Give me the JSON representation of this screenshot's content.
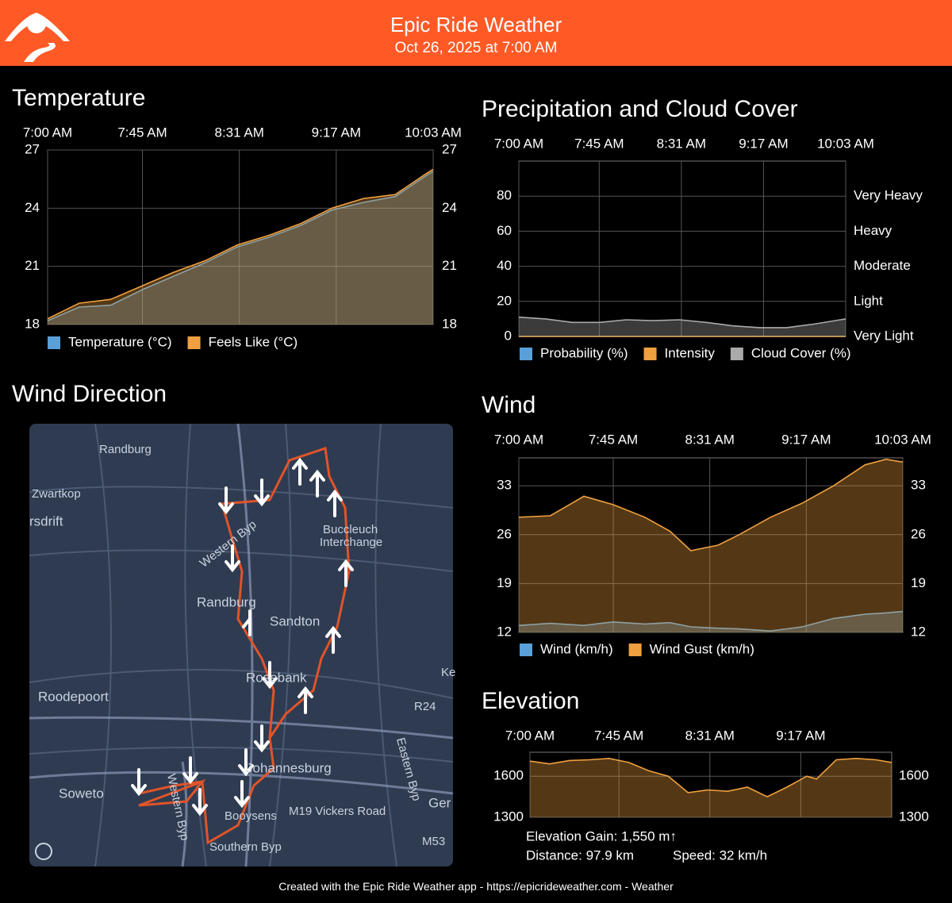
{
  "header": {
    "title": "Epic Ride Weather",
    "subtitle": "Oct 26, 2025 at 7:00 AM"
  },
  "chart_data": [
    {
      "type": "area",
      "title": "Temperature",
      "x": [
        0,
        15,
        30,
        45,
        60,
        75,
        90,
        105,
        120,
        135,
        150,
        165,
        180,
        183
      ],
      "xlim": [
        0,
        183
      ],
      "xticks": [
        {
          "value": 0,
          "label": "7:00 AM"
        },
        {
          "value": 45,
          "label": "7:45 AM"
        },
        {
          "value": 91,
          "label": "8:31 AM"
        },
        {
          "value": 137,
          "label": "9:17 AM"
        },
        {
          "value": 183,
          "label": "10:03 AM"
        }
      ],
      "ylim": [
        18,
        27
      ],
      "yticks": [
        18,
        21,
        24,
        27
      ],
      "grid": true,
      "series": [
        {
          "name": "Temperature (°C)",
          "color": "#5aa0d8",
          "values": [
            18.2,
            18.9,
            19.0,
            19.8,
            20.5,
            21.2,
            22.0,
            22.5,
            23.1,
            23.9,
            24.3,
            24.6,
            25.7,
            25.9
          ]
        },
        {
          "name": "Feels Like (°C)",
          "color": "#f0a040",
          "values": [
            18.3,
            19.1,
            19.3,
            20.0,
            20.7,
            21.3,
            22.1,
            22.6,
            23.2,
            24.0,
            24.5,
            24.7,
            25.8,
            26.0
          ]
        }
      ]
    },
    {
      "type": "area",
      "title": "Precipitation and Cloud Cover",
      "x": [
        0,
        15,
        30,
        45,
        60,
        75,
        90,
        105,
        120,
        135,
        150,
        165,
        180,
        183
      ],
      "xlim": [
        0,
        183
      ],
      "xticks": [
        {
          "value": 0,
          "label": "7:00 AM"
        },
        {
          "value": 45,
          "label": "7:45 AM"
        },
        {
          "value": 91,
          "label": "8:31 AM"
        },
        {
          "value": 137,
          "label": "9:17 AM"
        },
        {
          "value": 183,
          "label": "10:03 AM"
        }
      ],
      "ylim": [
        0,
        100
      ],
      "yticks": [
        0,
        20,
        40,
        60,
        80
      ],
      "y2lim": [
        0,
        100
      ],
      "y2ticks": [
        {
          "value": 0,
          "label": "Very Light"
        },
        {
          "value": 20,
          "label": "Light"
        },
        {
          "value": 40,
          "label": "Moderate"
        },
        {
          "value": 60,
          "label": "Heavy"
        },
        {
          "value": 80,
          "label": "Very Heavy"
        }
      ],
      "grid": true,
      "series": [
        {
          "name": "Probability (%)",
          "color": "#5aa0d8",
          "values": [
            0,
            0,
            0,
            0,
            0,
            0,
            0,
            0,
            0,
            0,
            0,
            0,
            0,
            0
          ]
        },
        {
          "name": "Intensity",
          "color": "#f0a040",
          "axis": "y2",
          "values": [
            0,
            0,
            0,
            0,
            0,
            0,
            0,
            0,
            0,
            0,
            0,
            0,
            0,
            0
          ]
        },
        {
          "name": "Cloud Cover (%)",
          "color": "#aaaaaa",
          "values": [
            11,
            10,
            8,
            8,
            9.5,
            9,
            9.5,
            8,
            6,
            5,
            5,
            7,
            9.5,
            10
          ]
        }
      ]
    },
    {
      "type": "area",
      "title": "Wind",
      "x": [
        0,
        15,
        31,
        45,
        60,
        72,
        82,
        95,
        105,
        120,
        135,
        150,
        165,
        175,
        183
      ],
      "xlim": [
        0,
        183
      ],
      "xticks": [
        {
          "value": 0,
          "label": "7:00 AM"
        },
        {
          "value": 45,
          "label": "7:45 AM"
        },
        {
          "value": 91,
          "label": "8:31 AM"
        },
        {
          "value": 137,
          "label": "9:17 AM"
        },
        {
          "value": 183,
          "label": "10:03 AM"
        }
      ],
      "ylim": [
        12,
        37
      ],
      "yticks": [
        12,
        19,
        26,
        33
      ],
      "grid": true,
      "series": [
        {
          "name": "Wind (km/h)",
          "color": "#5aa0d8",
          "values": [
            13,
            13.3,
            13,
            13.5,
            13.2,
            13.4,
            12.8,
            12.6,
            12.5,
            12.2,
            12.8,
            14,
            14.6,
            14.8,
            15
          ]
        },
        {
          "name": "Wind Gust (km/h)",
          "color": "#f0a040",
          "values": [
            28.5,
            28.7,
            31.5,
            30.3,
            28.5,
            26.5,
            23.7,
            24.5,
            26,
            28.5,
            30.5,
            33,
            36,
            36.8,
            36.4
          ]
        }
      ]
    },
    {
      "type": "area",
      "title": "Elevation",
      "x": [
        0,
        10,
        20,
        30,
        40,
        50,
        60,
        70,
        80,
        90,
        100,
        110,
        120,
        130,
        140,
        145,
        155,
        165,
        175,
        183
      ],
      "xlim": [
        0,
        183
      ],
      "xticks": [
        {
          "value": 0,
          "label": "7:00 AM"
        },
        {
          "value": 45,
          "label": "7:45 AM"
        },
        {
          "value": 91,
          "label": "8:31 AM"
        },
        {
          "value": 137,
          "label": "9:17 AM"
        }
      ],
      "ylim": [
        1300,
        1775
      ],
      "yticks": [
        1300,
        1600
      ],
      "grid": true,
      "series": [
        {
          "color": "#f0a040",
          "values": [
            1710,
            1690,
            1715,
            1720,
            1730,
            1700,
            1640,
            1600,
            1480,
            1500,
            1490,
            1520,
            1450,
            1520,
            1600,
            1580,
            1720,
            1730,
            1720,
            1700
          ]
        }
      ],
      "annotations": [
        "Elevation Gain: 1,550 m↑",
        "Distance: 97.9 km",
        "Speed: 32 km/h"
      ]
    }
  ],
  "map": {
    "title": "Wind Direction",
    "labels": [
      "Randburg",
      "Zwartkop",
      "rsdrift",
      "Buccleuch",
      "Interchange",
      "Western Byp",
      "Randburg",
      "Sandton",
      "Rosebank",
      "Roodepoort",
      "R24",
      "Eastern Byp",
      "Johannesburg",
      "Soweto",
      "Western Byp",
      "Booysens",
      "M19 Vickers Road",
      "Southern Byp",
      "Ger",
      "M53",
      "Ke"
    ]
  },
  "footer": {
    "text": "Created with the Epic Ride Weather app - https://epicrideweather.com - ",
    "brand": "Weather"
  }
}
